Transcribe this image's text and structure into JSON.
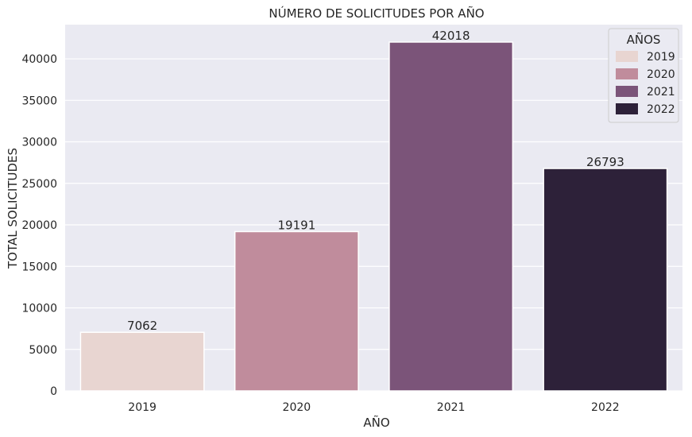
{
  "chart_data": {
    "type": "bar",
    "title": "NÚMERO DE SOLICITUDES POR AÑO",
    "xlabel": "AÑO",
    "ylabel": "TOTAL SOLICITUDES",
    "categories": [
      "2019",
      "2020",
      "2021",
      "2022"
    ],
    "values": [
      7062,
      19191,
      42018,
      26793
    ],
    "data_labels": [
      "7062",
      "19191",
      "42018",
      "26793"
    ],
    "ylim": [
      0,
      44120
    ],
    "yticks": [
      0,
      5000,
      10000,
      15000,
      20000,
      25000,
      30000,
      35000,
      40000
    ],
    "colors": [
      "#e8d5d1",
      "#c08c9c",
      "#7b5479",
      "#2d2139"
    ],
    "background": "#eaeaf2",
    "grid": true,
    "legend": {
      "title": "AÑOS",
      "placement": "top-right",
      "labels": [
        "2019",
        "2020",
        "2021",
        "2022"
      ]
    }
  }
}
